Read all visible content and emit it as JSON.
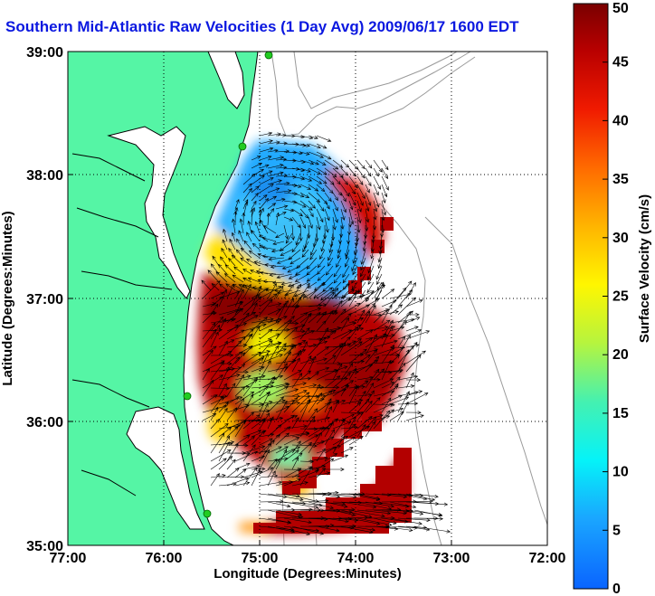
{
  "chart_data": {
    "type": "heatmap",
    "title": "Southern Mid-Atlantic Raw Velocities (1 Day Avg) 2009/06/17 1600 EDT",
    "xlabel": "Longitude (Degrees:Minutes)",
    "ylabel": "Latitude (Degrees:Minutes)",
    "colorbar_label": "Surface Velocity (cm/s)",
    "x_ticks": [
      "77:00",
      "76:00",
      "75:00",
      "74:00",
      "73:00",
      "72:00"
    ],
    "y_ticks": [
      "39:00",
      "38:00",
      "37:00",
      "36:00",
      "35:00"
    ],
    "colorbar_ticks": [
      "0",
      "5",
      "10",
      "15",
      "20",
      "25",
      "30",
      "35",
      "40",
      "45",
      "50"
    ],
    "xlim": [
      -77,
      -72
    ],
    "ylim": [
      35,
      39
    ],
    "clim": [
      0,
      50
    ],
    "grid": "dotted",
    "colorbar_position": "right",
    "colors": {
      "land": "#55f5a5",
      "coastline": "#000000",
      "bathymetry": "#9a9a9a",
      "arrows": "#000000",
      "stations": "#22cc22"
    },
    "velocity_field": [
      {
        "lon": -74.75,
        "lat": 37.85,
        "speed": 10
      },
      {
        "lon": -74.45,
        "lat": 37.55,
        "speed": 12
      },
      {
        "lon": -74.2,
        "lat": 37.85,
        "speed": 45
      },
      {
        "lon": -74.95,
        "lat": 37.35,
        "speed": 28
      },
      {
        "lon": -74.8,
        "lat": 36.9,
        "speed": 48
      },
      {
        "lon": -74.2,
        "lat": 36.6,
        "speed": 46
      },
      {
        "lon": -74.8,
        "lat": 36.4,
        "speed": 30
      },
      {
        "lon": -74.4,
        "lat": 36.0,
        "speed": 45
      },
      {
        "lon": -74.55,
        "lat": 35.55,
        "speed": 22
      },
      {
        "lon": -73.8,
        "lat": 35.4,
        "speed": 48
      }
    ]
  }
}
